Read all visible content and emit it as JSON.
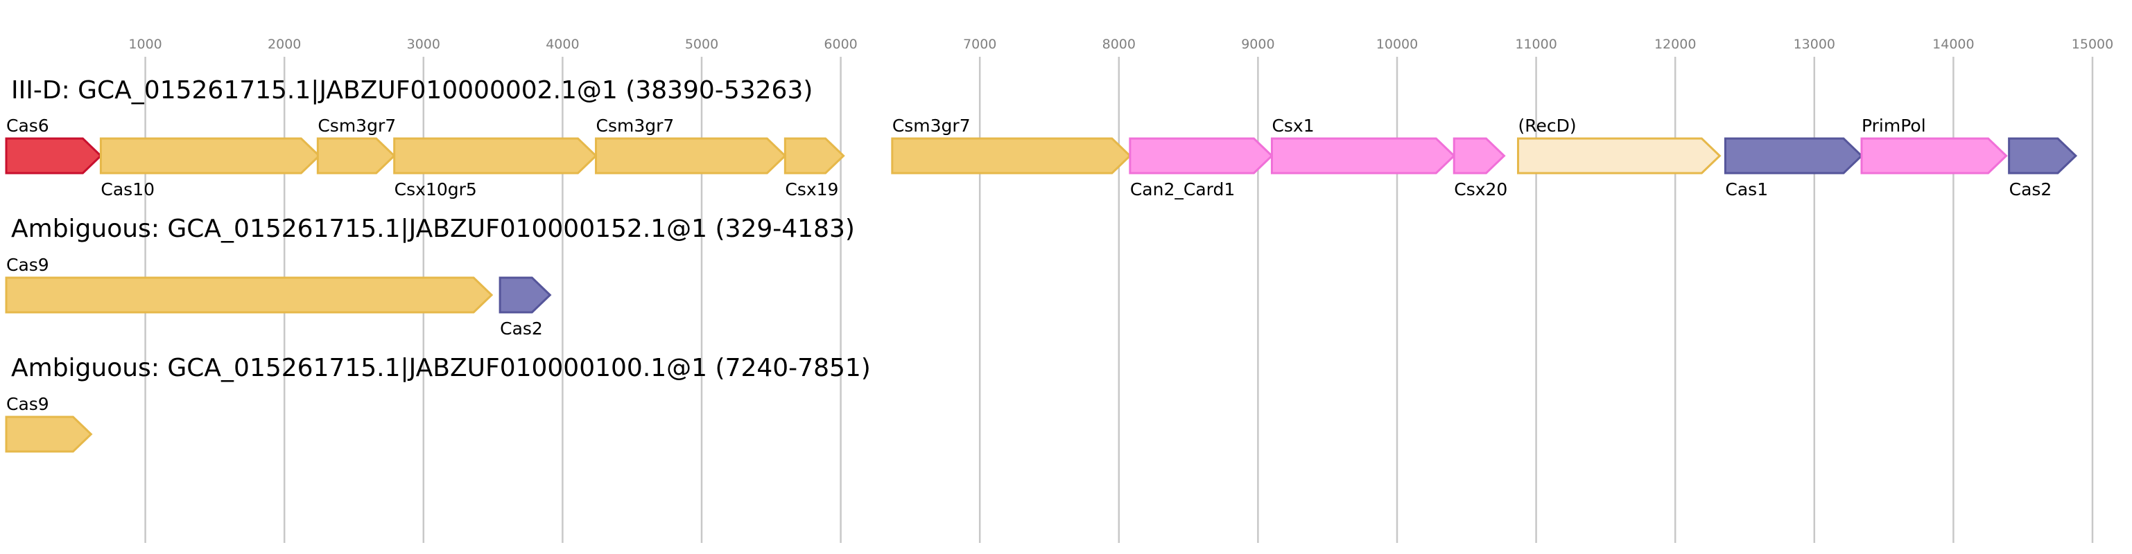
{
  "chart_data": {
    "type": "gene-arrow-map",
    "axis": {
      "ticks": [
        1000,
        2000,
        3000,
        4000,
        5000,
        6000,
        7000,
        8000,
        9000,
        10000,
        11000,
        12000,
        13000,
        14000,
        15000
      ],
      "domain": [
        0,
        15200
      ],
      "grid": true
    },
    "colors": {
      "gold": {
        "fill": "#f2cb70",
        "stroke": "#e6b84a"
      },
      "gold_light": {
        "fill": "#fbeacb",
        "stroke": "#e6b84a"
      },
      "red": {
        "fill": "#e8424e",
        "stroke": "#c8102e"
      },
      "pink": {
        "fill": "#ff96e8",
        "stroke": "#f070d8"
      },
      "purple": {
        "fill": "#7b7bb8",
        "stroke": "#55559a"
      }
    },
    "tracks": [
      {
        "title": "III-D: GCA_015261715.1|JABZUF010000002.1@1 (38390-53263)",
        "genes": [
          {
            "label": "Cas6",
            "start": 0,
            "end": 680,
            "color": "red",
            "label_pos": "above"
          },
          {
            "label": "Cas10",
            "start": 680,
            "end": 2250,
            "color": "gold",
            "label_pos": "below"
          },
          {
            "label": "Csm3gr7",
            "start": 2240,
            "end": 2790,
            "color": "gold",
            "label_pos": "above"
          },
          {
            "label": "Csx10gr5",
            "start": 2790,
            "end": 4240,
            "color": "gold",
            "label_pos": "below"
          },
          {
            "label": "Csm3gr7",
            "start": 4240,
            "end": 5600,
            "color": "gold",
            "label_pos": "above"
          },
          {
            "label": "Csx19",
            "start": 5600,
            "end": 6020,
            "color": "gold",
            "label_pos": "below"
          },
          {
            "label": "Csm3gr7",
            "start": 6370,
            "end": 8080,
            "color": "gold",
            "label_pos": "above"
          },
          {
            "label": "Can2_Card1",
            "start": 8080,
            "end": 9100,
            "color": "pink",
            "label_pos": "below"
          },
          {
            "label": "Csx1",
            "start": 9100,
            "end": 10410,
            "color": "pink",
            "label_pos": "above"
          },
          {
            "label": "Csx20",
            "start": 10410,
            "end": 10770,
            "color": "pink",
            "label_pos": "below"
          },
          {
            "label": "(RecD)",
            "start": 10870,
            "end": 12320,
            "color": "gold_light",
            "label_pos": "above"
          },
          {
            "label": "Cas1",
            "start": 12360,
            "end": 13340,
            "color": "purple",
            "label_pos": "below"
          },
          {
            "label": "PrimPol",
            "start": 13340,
            "end": 14380,
            "color": "pink",
            "label_pos": "above"
          },
          {
            "label": "Cas2",
            "start": 14400,
            "end": 14880,
            "color": "purple",
            "label_pos": "below"
          }
        ]
      },
      {
        "title": "Ambiguous: GCA_015261715.1|JABZUF010000152.1@1 (329-4183)",
        "genes": [
          {
            "label": "Cas9",
            "start": 0,
            "end": 3490,
            "color": "gold",
            "label_pos": "above"
          },
          {
            "label": "Cas2",
            "start": 3550,
            "end": 3910,
            "color": "purple",
            "label_pos": "below"
          }
        ]
      },
      {
        "title": "Ambiguous: GCA_015261715.1|JABZUF010000100.1@1 (7240-7851)",
        "genes": [
          {
            "label": "Cas9",
            "start": 0,
            "end": 610,
            "color": "gold",
            "label_pos": "above"
          }
        ]
      }
    ]
  }
}
